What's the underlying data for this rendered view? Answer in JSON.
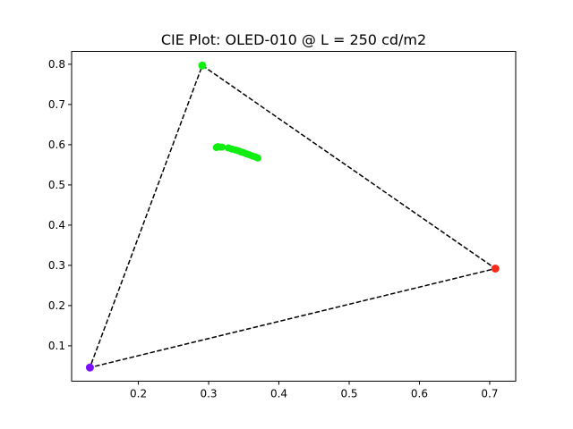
{
  "chart_data": {
    "type": "scatter",
    "title": "CIE Plot: OLED-010 @ L = 250 cd/m2",
    "xlabel": "",
    "ylabel": "",
    "xlim": [
      0.105,
      0.737
    ],
    "ylim": [
      0.012,
      0.832
    ],
    "xticks": [
      0.2,
      0.3,
      0.4,
      0.5,
      0.6,
      0.7
    ],
    "yticks": [
      0.1,
      0.2,
      0.3,
      0.4,
      0.5,
      0.6,
      0.7,
      0.8
    ],
    "grid": false,
    "primaries": [
      {
        "x": 0.291,
        "y": 0.797,
        "color": "#11ee11"
      },
      {
        "x": 0.708,
        "y": 0.292,
        "color": "#ff2a1a"
      },
      {
        "x": 0.131,
        "y": 0.046,
        "color": "#7a11ff"
      }
    ],
    "triangle_color": "#000000",
    "measurement_color": "#11ee11",
    "measurements": [
      {
        "x": 0.311,
        "y": 0.593
      },
      {
        "x": 0.313,
        "y": 0.595
      },
      {
        "x": 0.316,
        "y": 0.594
      },
      {
        "x": 0.319,
        "y": 0.594
      },
      {
        "x": 0.328,
        "y": 0.592
      },
      {
        "x": 0.333,
        "y": 0.589
      },
      {
        "x": 0.338,
        "y": 0.587
      },
      {
        "x": 0.342,
        "y": 0.585
      },
      {
        "x": 0.346,
        "y": 0.582
      },
      {
        "x": 0.35,
        "y": 0.58
      },
      {
        "x": 0.354,
        "y": 0.577
      },
      {
        "x": 0.358,
        "y": 0.575
      },
      {
        "x": 0.362,
        "y": 0.572
      },
      {
        "x": 0.366,
        "y": 0.57
      },
      {
        "x": 0.37,
        "y": 0.567
      }
    ]
  }
}
